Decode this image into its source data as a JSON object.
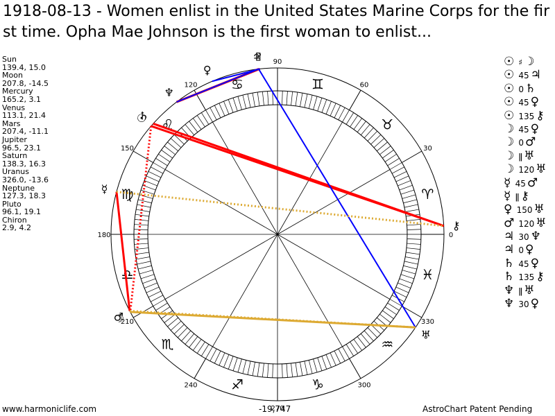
{
  "title": "1918-08-13 - Women enlist in the United States Marine Corps for the first time. Opha Mae Johnson is the first woman to enlist...",
  "planets": [
    {
      "name": "Sun",
      "coords": "139.4, 15.0",
      "lon": 139.4,
      "glyph": "☉",
      "glyph_name": "sun-icon"
    },
    {
      "name": "Moon",
      "coords": "207.8, -14.5",
      "lon": 207.8,
      "glyph": "☽",
      "glyph_name": "moon-icon"
    },
    {
      "name": "Mercury",
      "coords": "165.2, 3.1",
      "lon": 165.2,
      "glyph": "☿",
      "glyph_name": "mercury-icon"
    },
    {
      "name": "Venus",
      "coords": "113.1, 21.4",
      "lon": 113.1,
      "glyph": "♀",
      "glyph_name": "venus-icon"
    },
    {
      "name": "Mars",
      "coords": "207.4, -11.1",
      "lon": 207.4,
      "glyph": "♂",
      "glyph_name": "mars-icon"
    },
    {
      "name": "Jupiter",
      "coords": "96.5, 23.1",
      "lon": 96.5,
      "glyph": "♃",
      "glyph_name": "jupiter-icon"
    },
    {
      "name": "Saturn",
      "coords": "138.3, 16.3",
      "lon": 138.3,
      "glyph": "♄",
      "glyph_name": "saturn-icon"
    },
    {
      "name": "Uranus",
      "coords": "326.0, -13.6",
      "lon": 326.0,
      "glyph": "♅",
      "glyph_name": "uranus-icon"
    },
    {
      "name": "Neptune",
      "coords": "127.3, 18.3",
      "lon": 127.3,
      "glyph": "♆",
      "glyph_name": "neptune-icon"
    },
    {
      "name": "Pluto",
      "coords": "96.1, 19.1",
      "lon": 96.1,
      "glyph": "♇",
      "glyph_name": "pluto-icon"
    },
    {
      "name": "Chiron",
      "coords": "2.9, 4.2",
      "lon": 2.9,
      "glyph": "⚷",
      "glyph_name": "chiron-icon"
    }
  ],
  "aspects": [
    {
      "p1": "☉",
      "aspect": "♯",
      "p2": "☽"
    },
    {
      "p1": "☉",
      "aspect": "45",
      "p2": "♃"
    },
    {
      "p1": "☉",
      "aspect": "0",
      "p2": "♄"
    },
    {
      "p1": "☉",
      "aspect": "45",
      "p2": "♀"
    },
    {
      "p1": "☉",
      "aspect": "135",
      "p2": "⚷"
    },
    {
      "p1": "☽",
      "aspect": "45",
      "p2": "♀"
    },
    {
      "p1": "☽",
      "aspect": "0",
      "p2": "♂"
    },
    {
      "p1": "☽",
      "aspect": "ǁ",
      "p2": "♅"
    },
    {
      "p1": "☽",
      "aspect": "120",
      "p2": "♅"
    },
    {
      "p1": "☿",
      "aspect": "45",
      "p2": "♂"
    },
    {
      "p1": "☿",
      "aspect": "ǁ",
      "p2": "⚷"
    },
    {
      "p1": "♀",
      "aspect": "150",
      "p2": "♅"
    },
    {
      "p1": "♂",
      "aspect": "120",
      "p2": "♅"
    },
    {
      "p1": "♃",
      "aspect": "30",
      "p2": "♆"
    },
    {
      "p1": "♃",
      "aspect": "0",
      "p2": "♀"
    },
    {
      "p1": "♄",
      "aspect": "45",
      "p2": "♀"
    },
    {
      "p1": "♄",
      "aspect": "135",
      "p2": "⚷"
    },
    {
      "p1": "♆",
      "aspect": "ǁ",
      "p2": "♅"
    },
    {
      "p1": "♆",
      "aspect": "30",
      "p2": "♀"
    }
  ],
  "degree_labels": [
    {
      "deg": 0,
      "text": "0"
    },
    {
      "deg": 30,
      "text": "30"
    },
    {
      "deg": 60,
      "text": "60"
    },
    {
      "deg": 90,
      "text": "90"
    },
    {
      "deg": 120,
      "text": "120"
    },
    {
      "deg": 150,
      "text": "150"
    },
    {
      "deg": 180,
      "text": "180"
    },
    {
      "deg": 210,
      "text": "210"
    },
    {
      "deg": 240,
      "text": "240"
    },
    {
      "deg": 270,
      "text": "270"
    },
    {
      "deg": 300,
      "text": "300"
    },
    {
      "deg": 330,
      "text": "330"
    }
  ],
  "zodiac": [
    {
      "glyph": "♈",
      "name": "aries-icon"
    },
    {
      "glyph": "♉",
      "name": "taurus-icon"
    },
    {
      "glyph": "♊",
      "name": "gemini-icon"
    },
    {
      "glyph": "♋",
      "name": "cancer-icon"
    },
    {
      "glyph": "♌",
      "name": "leo-icon"
    },
    {
      "glyph": "♍",
      "name": "virgo-icon"
    },
    {
      "glyph": "♎",
      "name": "libra-icon"
    },
    {
      "glyph": "♏",
      "name": "scorpio-icon"
    },
    {
      "glyph": "♐",
      "name": "sagittarius-icon"
    },
    {
      "glyph": "♑",
      "name": "capricorn-icon"
    },
    {
      "glyph": "♒",
      "name": "aquarius-icon"
    },
    {
      "glyph": "♓",
      "name": "pisces-icon"
    }
  ],
  "chart_lines": [
    {
      "a": "Jupiter",
      "b": "Neptune",
      "color": "#ff0000",
      "style": "solid"
    },
    {
      "a": "Pluto",
      "b": "Neptune",
      "color": "#ff0000",
      "style": "solid"
    },
    {
      "a": "Sun",
      "b": "Chiron",
      "color": "#ff0000",
      "style": "solid"
    },
    {
      "a": "Saturn",
      "b": "Chiron",
      "color": "#ff0000",
      "style": "solid"
    },
    {
      "a": "Mercury",
      "b": "Mars",
      "color": "#ff0000",
      "style": "solid"
    },
    {
      "a": "Sun",
      "b": "Moon",
      "color": "#ff0000",
      "style": "dotted"
    },
    {
      "a": "Jupiter",
      "b": "Uranus",
      "color": "#0000ff",
      "style": "solid"
    },
    {
      "a": "Venus",
      "b": "Pluto",
      "color": "#0000ff",
      "style": "solid"
    },
    {
      "a": "Neptune",
      "b": "Jupiter",
      "color": "#0000ff",
      "style": "solid"
    },
    {
      "a": "Moon",
      "b": "Uranus",
      "color": "#ddaa33",
      "style": "solid"
    },
    {
      "a": "Mars",
      "b": "Uranus",
      "color": "#ddaa33",
      "style": "dotted"
    },
    {
      "a": "Mercury",
      "b": "Chiron",
      "color": "#ddaa33",
      "style": "dotted"
    }
  ],
  "footer": {
    "website": "www.harmoniclife.com",
    "number": "-19,747",
    "credit": "AstroChart Patent Pending"
  }
}
